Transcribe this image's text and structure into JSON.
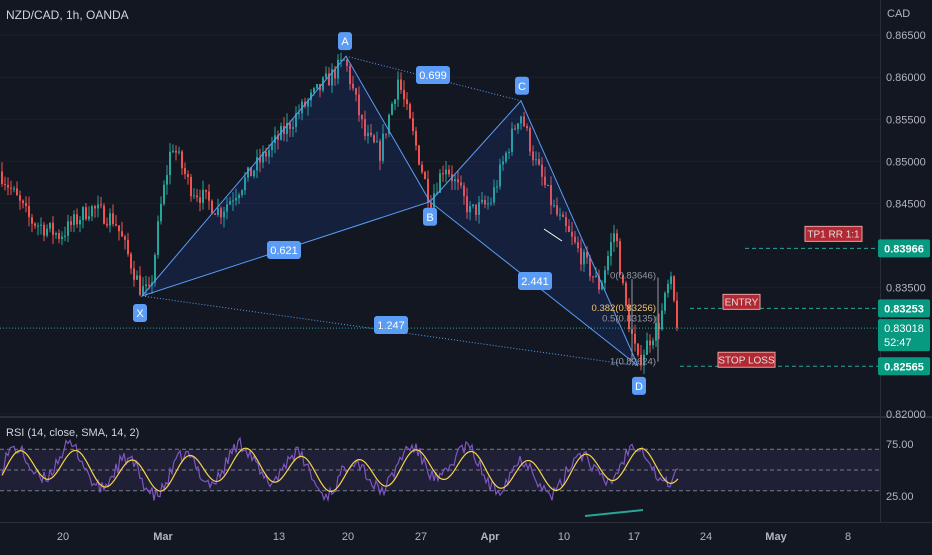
{
  "header": {
    "symbol_label": "NZD/CAD, 1h, OANDA",
    "currency": "CAD"
  },
  "rsi": {
    "label": "RSI (14, close, SMA, 14, 2)",
    "ticks": [
      {
        "v": 75,
        "label": "75.00"
      },
      {
        "v": 25,
        "label": "25.00"
      }
    ]
  },
  "chart_data": {
    "type": "candlestick",
    "ylim": [
      0.8195,
      0.8668
    ],
    "x_ticks": [
      "20",
      "Mar",
      "13",
      "20",
      "27",
      "Apr",
      "10",
      "17",
      "24",
      "May",
      "8"
    ],
    "y_ticks": [
      {
        "v": 0.865,
        "label": "0.86500"
      },
      {
        "v": 0.86,
        "label": "0.86000"
      },
      {
        "v": 0.855,
        "label": "0.85500"
      },
      {
        "v": 0.85,
        "label": "0.85000"
      },
      {
        "v": 0.845,
        "label": "0.84500"
      },
      {
        "v": 0.835,
        "label": "0.83500"
      },
      {
        "v": 0.82,
        "label": "0.82000"
      }
    ],
    "pattern_points": [
      {
        "label": "X",
        "price": 0.834
      },
      {
        "label": "A",
        "price": 0.8625
      },
      {
        "label": "B",
        "price": 0.8452
      },
      {
        "label": "C",
        "price": 0.8572
      },
      {
        "label": "D",
        "price": 0.8257
      }
    ],
    "ratios": [
      "0.621",
      "0.699",
      "2.441",
      "1.247"
    ],
    "fib_levels": [
      {
        "label": "0(0.83646)",
        "price": 0.83646
      },
      {
        "label": "0.382(0.83256)",
        "price": 0.83256
      },
      {
        "label": "0.5(0.83135)",
        "price": 0.83135
      },
      {
        "label": "1(0.82624)",
        "price": 0.82624
      }
    ],
    "levels": [
      {
        "name": "TP1 RR 1:1",
        "price": 0.83966,
        "price_label": "0.83966"
      },
      {
        "name": "ENTRY",
        "price": 0.83253,
        "price_label": "0.83253"
      },
      {
        "name": "STOP LOSS",
        "price": 0.82565,
        "price_label": "0.82565"
      }
    ],
    "current_price": {
      "price": 0.83018,
      "label": "0.83018",
      "countdown": "52:47"
    }
  }
}
